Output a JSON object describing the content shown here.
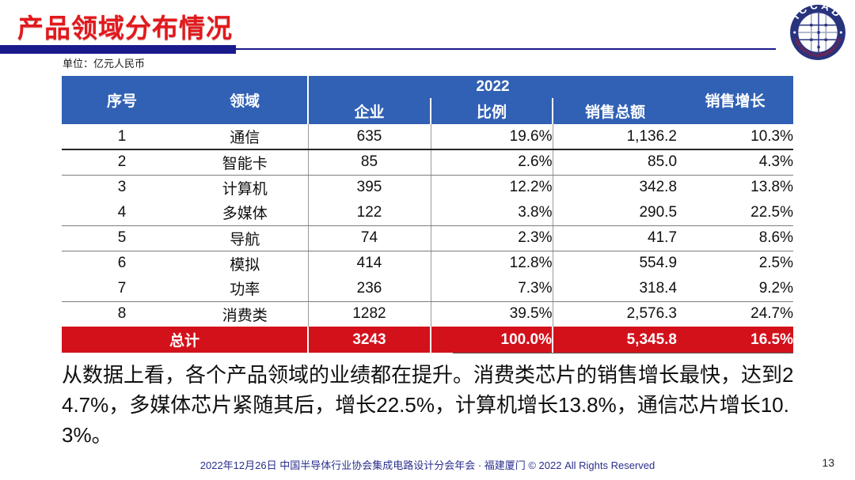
{
  "slide": {
    "title": "产品领域分布情况",
    "unit_label": "单位：亿元人民币",
    "footer": "2022年12月26日 中国半导体行业协会集成电路设计分会年会 · 福建厦门 © 2022 All Rights Reserved",
    "page_number": "13"
  },
  "colors": {
    "title_red": "#E2191D",
    "header_blue": "#3161B4",
    "total_row_red": "#D3111B",
    "navy_bar": "#1B1A8C",
    "footer_navy": "#2B2F8C"
  },
  "logo": {
    "top_text": "ICCAD",
    "bottom_text": "中国半导体行业协会集成电路设计分会",
    "ring_color": "#28337E",
    "bottom_text_color": "#C8161D"
  },
  "table": {
    "header": {
      "serial": "序号",
      "field": "领域",
      "year": "2022",
      "companies": "企业",
      "ratio": "比例",
      "sales": "销售总额",
      "growth": "销售增长"
    },
    "rows": [
      [
        "1",
        "通信",
        "635",
        "19.6%",
        "1,136.2",
        "10.3%"
      ],
      [
        "2",
        "智能卡",
        "85",
        "2.6%",
        "85.0",
        "4.3%"
      ],
      [
        "3",
        "计算机",
        "395",
        "12.2%",
        "342.8",
        "13.8%"
      ],
      [
        "4",
        "多媒体",
        "122",
        "3.8%",
        "290.5",
        "22.5%"
      ],
      [
        "5",
        "导航",
        "74",
        "2.3%",
        "41.7",
        "8.6%"
      ],
      [
        "6",
        "模拟",
        "414",
        "12.8%",
        "554.9",
        "2.5%"
      ],
      [
        "7",
        "功率",
        "236",
        "7.3%",
        "318.4",
        "9.2%"
      ],
      [
        "8",
        "消费类",
        "1282",
        "39.5%",
        "2,576.3",
        "24.7%"
      ]
    ],
    "row_border_styles": [
      "heavy",
      "light",
      "none",
      "light",
      "light",
      "none",
      "light",
      "none"
    ],
    "total": [
      "总计",
      "3243",
      "100.0%",
      "5,345.8",
      "16.5%"
    ]
  },
  "body_text": "从数据上看，各个产品领域的业绩都在提升。消费类芯片的销售增长最快，达到24.7%，多媒体芯片紧随其后，增长22.5%，计算机增长13.8%，通信芯片增长10.3%。"
}
